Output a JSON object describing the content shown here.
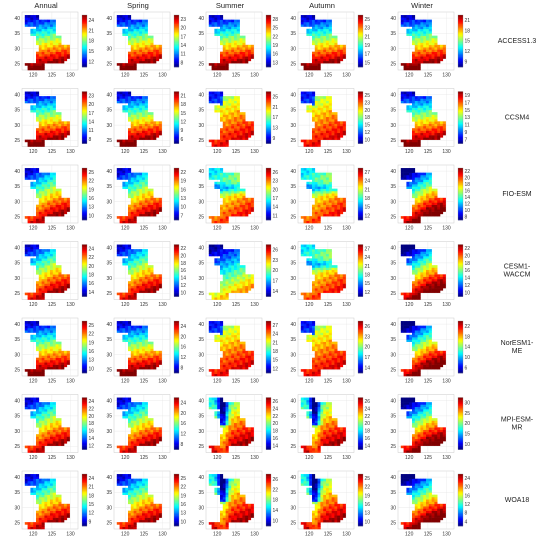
{
  "chart_data": {
    "type": "heatmap",
    "columns": [
      "Annual",
      "Spring",
      "Summer",
      "Autumn",
      "Winter"
    ],
    "rows": [
      "ACCESS1.3",
      "CCSM4",
      "FIO-ESM",
      "CESM1-\nWACCM",
      "NorESM1-\nME",
      "MPI-ESM-\nMR",
      "WOA18"
    ],
    "x_ticks": [
      "120",
      "125",
      "130"
    ],
    "y_ticks": [
      "25",
      "30",
      "35",
      "40"
    ],
    "colormap": "jet",
    "colorbar_ticks": [
      [
        [
          "24",
          "21",
          "18",
          "15",
          "12"
        ],
        [
          "23",
          "20",
          "17",
          "14",
          "11",
          "8"
        ],
        [
          "28",
          "25",
          "22",
          "19",
          "16",
          "13"
        ],
        [
          "25",
          "23",
          "21",
          "19",
          "17",
          "15"
        ],
        [
          "21",
          "18",
          "15",
          "12",
          "9"
        ]
      ],
      [
        [
          "23",
          "20",
          "17",
          "14",
          "11",
          "8"
        ],
        [
          "21",
          "18",
          "15",
          "12",
          "9",
          "6"
        ],
        [
          "25",
          "21",
          "17",
          "13",
          "9"
        ],
        [
          "25",
          "23",
          "20",
          "18",
          "15",
          "12",
          "10"
        ],
        [
          "19",
          "17",
          "15",
          "13",
          "11",
          "9",
          "7"
        ]
      ],
      [
        [
          "25",
          "22",
          "19",
          "16",
          "13",
          "10"
        ],
        [
          "22",
          "19",
          "16",
          "13",
          "10",
          "7"
        ],
        [
          "26",
          "23",
          "20",
          "17",
          "14",
          "11"
        ],
        [
          "27",
          "24",
          "21",
          "18",
          "15",
          "12"
        ],
        [
          "22",
          "20",
          "18",
          "16",
          "14",
          "12",
          "10",
          "8"
        ]
      ],
      [
        [
          "24",
          "22",
          "20",
          "18",
          "16",
          "14"
        ],
        [
          "22",
          "20",
          "18",
          "16",
          "14",
          "12",
          "10"
        ],
        [
          "26",
          "23",
          "20",
          "17",
          "14"
        ],
        [
          "27",
          "24",
          "21",
          "18",
          "15",
          "12"
        ],
        [
          "22",
          "20",
          "18",
          "16",
          "14",
          "12",
          "10"
        ]
      ],
      [
        [
          "25",
          "22",
          "19",
          "16",
          "13",
          "10"
        ],
        [
          "24",
          "20",
          "16",
          "12",
          "8"
        ],
        [
          "27",
          "24",
          "21",
          "18",
          "15",
          "12"
        ],
        [
          "26",
          "23",
          "20",
          "17",
          "14"
        ],
        [
          "22",
          "18",
          "14",
          "10",
          "6"
        ]
      ],
      [
        [
          "24",
          "22",
          "20",
          "18",
          "16",
          "14",
          "12"
        ],
        [
          "24",
          "20",
          "16",
          "12",
          "8"
        ],
        [
          "26",
          "24",
          "22",
          "20",
          "18",
          "16",
          "14"
        ],
        [
          "26",
          "24",
          "22",
          "20",
          "18",
          "16",
          "14"
        ],
        [
          "30",
          "25",
          "20",
          "15",
          "10"
        ]
      ],
      [
        [
          "24",
          "21",
          "18",
          "15",
          "12",
          "9"
        ],
        [
          "25",
          "22",
          "19",
          "16",
          "13",
          "10"
        ],
        [
          "26",
          "22",
          "18",
          "14",
          "10"
        ],
        [
          "25",
          "22",
          "19",
          "16",
          "13",
          "10"
        ],
        [
          "24",
          "20",
          "16",
          "12",
          "8",
          "4"
        ]
      ]
    ],
    "fields": [
      [
        "warm_south",
        "warm_south",
        "warm_south",
        "warm_south",
        "warm_south"
      ],
      [
        "warm_south",
        "warm_south",
        "warm_uniform",
        "warm_uniform",
        "warm_south"
      ],
      [
        "gradient",
        "gradient",
        "mixed",
        "mixed",
        "warm_sea"
      ],
      [
        "gradient",
        "gradient",
        "cool_north",
        "mixed",
        "warm_sea"
      ],
      [
        "warm_south",
        "warm_south",
        "warm_uniform",
        "warm_uniform",
        "warm_sea"
      ],
      [
        "gradient",
        "gradient",
        "coastal",
        "coastal",
        "warm_sea"
      ],
      [
        "gradient",
        "gradient",
        "coastal",
        "coastal",
        "warm_sea"
      ]
    ]
  }
}
